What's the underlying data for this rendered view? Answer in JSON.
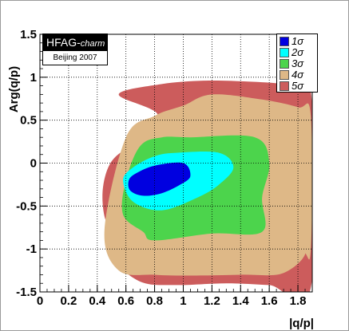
{
  "chart_data": {
    "type": "contour",
    "title": "",
    "xlabel": "|q/p|",
    "ylabel": "Arg(q/p)",
    "xlim": [
      0,
      1.9
    ],
    "ylim": [
      -1.5,
      1.5
    ],
    "x_ticks": [
      "0",
      "0.2",
      "0.4",
      "0.6",
      "0.8",
      "1",
      "1.2",
      "1.4",
      "1.6",
      "1.8"
    ],
    "y_ticks": [
      "1.5",
      "1",
      "0.5",
      "0",
      "-0.5",
      "-1",
      "-1.5"
    ],
    "grid": true,
    "tag": {
      "main": "HFAG-",
      "sub": "charm",
      "note": "Beijing 2007"
    },
    "legend_position": "top-right",
    "series": [
      {
        "name": "5σ",
        "color": "#cc5c5c"
      },
      {
        "name": "4σ",
        "color": "#deb887"
      },
      {
        "name": "3σ",
        "color": "#4cd44c"
      },
      {
        "name": "2σ",
        "color": "#00ffff"
      },
      {
        "name": "1σ",
        "color": "#0000e0"
      }
    ],
    "contours": [
      {
        "level": "5σ",
        "points": [
          [
            0.55,
            0.8
          ],
          [
            0.85,
            0.92
          ],
          [
            1.15,
            0.96
          ],
          [
            1.45,
            0.95
          ],
          [
            1.7,
            0.92
          ],
          [
            1.89,
            0.84
          ],
          [
            1.89,
            -1.45
          ],
          [
            1.6,
            -1.42
          ],
          [
            1.3,
            -1.4
          ],
          [
            0.95,
            -1.42
          ],
          [
            0.7,
            -1.38
          ],
          [
            0.5,
            -1.1
          ],
          [
            0.52,
            -0.87
          ],
          [
            0.45,
            -0.62
          ],
          [
            0.44,
            -0.28
          ],
          [
            0.5,
            0.02
          ],
          [
            0.64,
            0.2
          ],
          [
            0.8,
            0.28
          ],
          [
            0.67,
            0.3
          ],
          [
            0.82,
            0.57
          ]
        ]
      },
      {
        "level": "4σ",
        "points": [
          [
            1.2,
            0.8
          ],
          [
            1.55,
            0.74
          ],
          [
            1.8,
            0.65
          ],
          [
            1.89,
            0.55
          ],
          [
            1.89,
            -1.0
          ],
          [
            1.82,
            -1.0
          ],
          [
            1.55,
            -0.8
          ],
          [
            1.85,
            -1.0
          ],
          [
            1.7,
            -1.28
          ],
          [
            1.4,
            -1.3
          ],
          [
            1.05,
            -1.31
          ],
          [
            0.8,
            -1.3
          ],
          [
            0.55,
            -1.25
          ],
          [
            0.45,
            -0.78
          ],
          [
            0.6,
            0.3
          ],
          [
            0.8,
            0.55
          ],
          [
            1.0,
            0.67
          ]
        ]
      },
      {
        "level": "3σ",
        "points": [
          [
            1.05,
            0.3
          ],
          [
            1.5,
            0.3
          ],
          [
            1.6,
            0.0
          ],
          [
            1.55,
            -0.4
          ],
          [
            1.55,
            -0.8
          ],
          [
            1.2,
            -0.82
          ],
          [
            0.8,
            -0.9
          ],
          [
            0.72,
            -0.8
          ],
          [
            0.58,
            -0.6
          ],
          [
            0.6,
            -0.2
          ],
          [
            0.7,
            0.2
          ],
          [
            0.85,
            0.3
          ]
        ]
      },
      {
        "level": "2σ",
        "points": [
          [
            0.95,
            0.12
          ],
          [
            1.25,
            0.12
          ],
          [
            1.35,
            -0.05
          ],
          [
            1.25,
            -0.25
          ],
          [
            1.1,
            -0.4
          ],
          [
            0.85,
            -0.55
          ],
          [
            0.65,
            -0.45
          ],
          [
            0.58,
            -0.2
          ],
          [
            0.65,
            -0.05
          ],
          [
            0.8,
            0.08
          ]
        ]
      },
      {
        "level": "1σ",
        "points": [
          [
            0.8,
            -0.03
          ],
          [
            1.0,
            0.0
          ],
          [
            1.05,
            -0.15
          ],
          [
            0.98,
            -0.25
          ],
          [
            0.85,
            -0.35
          ],
          [
            0.72,
            -0.38
          ],
          [
            0.63,
            -0.32
          ],
          [
            0.62,
            -0.2
          ],
          [
            0.67,
            -0.12
          ]
        ]
      }
    ]
  }
}
